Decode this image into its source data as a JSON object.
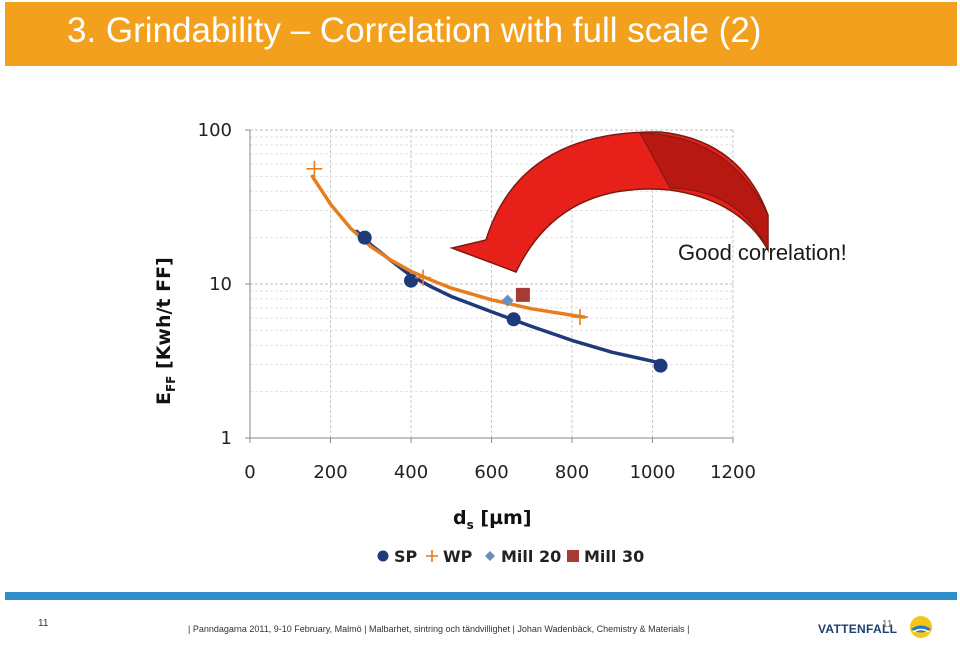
{
  "slide": {
    "title": "3. Grindability – Correlation with full scale (2)",
    "annotation": "Good correlation!",
    "number": "11",
    "footer": "| Panndagarna 2011, 9-10 February, Malmö | Malbarhet, sintring och tändvillighet | Johan Wadenbäck, Chemistry & Materials |",
    "logo": "VATTENFALL",
    "logo_page": "11"
  },
  "colors": {
    "title_bar": "#f2a01e",
    "sp": "#1f3a7a",
    "wp": "#e87d1e",
    "mill20": "#6a8fb8",
    "mill30": "#a83a36",
    "arrow": "#e8201a",
    "footer_line": "#2e8ec9"
  },
  "chart_data": {
    "type": "scatter",
    "ylabel": "E_FF [Kwh/t FF]",
    "ylabel_main": "E",
    "ylabel_sub": "FF",
    "ylabel_rest": " [Kwh/t FF]",
    "xlabel": "d_s [µm]",
    "xlabel_main": "d",
    "xlabel_sub": "s",
    "xlabel_rest": " [µm]",
    "x_ticks": [
      "0",
      "200",
      "400",
      "600",
      "800",
      "1000",
      "1200"
    ],
    "y_ticks": [
      "1",
      "10",
      "100"
    ],
    "xlim": [
      0,
      1200
    ],
    "ylim": [
      1,
      100
    ],
    "y_scale": "log",
    "grid": true,
    "legend_position": "bottom",
    "series": [
      {
        "name": "SP",
        "marker": "circle",
        "color": "#1f3a7a",
        "points": [
          [
            285,
            20
          ],
          [
            400,
            10.5
          ],
          [
            655,
            5.9
          ],
          [
            1020,
            2.95
          ]
        ]
      },
      {
        "name": "WP",
        "marker": "plus",
        "color": "#e87d1e",
        "points": [
          [
            160,
            56
          ],
          [
            430,
            11
          ],
          [
            820,
            6.1
          ]
        ]
      },
      {
        "name": "Mill 20",
        "marker": "diamond",
        "color": "#6a8fb8",
        "points": [
          [
            640,
            7.8
          ]
        ]
      },
      {
        "name": "Mill 30",
        "marker": "square",
        "color": "#a83a36",
        "points": [
          [
            678,
            8.5
          ]
        ]
      }
    ],
    "fits": [
      {
        "series": "SP",
        "color": "#1f3a7a",
        "x_range": [
          265,
          1025
        ],
        "points": [
          [
            265,
            22
          ],
          [
            300,
            18
          ],
          [
            350,
            14.2
          ],
          [
            400,
            11.3
          ],
          [
            450,
            9.6
          ],
          [
            500,
            8.3
          ],
          [
            600,
            6.6
          ],
          [
            700,
            5.3
          ],
          [
            800,
            4.3
          ],
          [
            900,
            3.6
          ],
          [
            1025,
            3.05
          ]
        ]
      },
      {
        "series": "WP",
        "color": "#e87d1e",
        "x_range": [
          155,
          830
        ],
        "points": [
          [
            155,
            50
          ],
          [
            200,
            33
          ],
          [
            250,
            23
          ],
          [
            300,
            17.5
          ],
          [
            350,
            14.3
          ],
          [
            400,
            12.1
          ],
          [
            450,
            10.6
          ],
          [
            500,
            9.4
          ],
          [
            600,
            7.9
          ],
          [
            700,
            6.9
          ],
          [
            830,
            6.1
          ]
        ]
      }
    ]
  }
}
